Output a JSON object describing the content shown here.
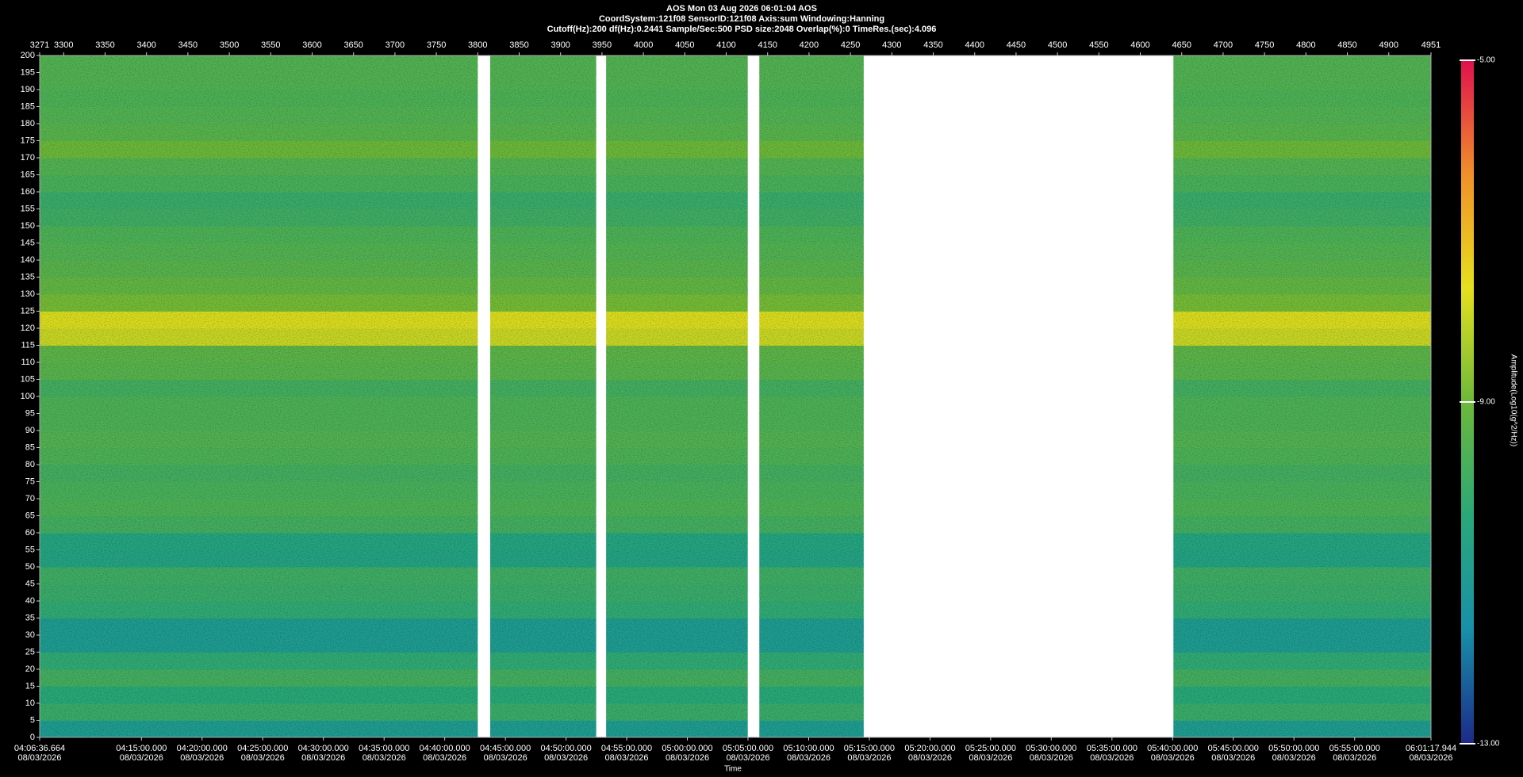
{
  "chart_data": {
    "type": "spectrogram",
    "title_lines": [
      "AOS  Mon 03 Aug 2026 06:01:04  AOS",
      "CoordSystem:121f08   SensorID:121f08   Axis:sum   Windowing:Hanning",
      "Cutoff(Hz):200     df(Hz):0.2441     Sample/Sec:500     PSD size:2048     Overlap(%):0      TimeRes.(sec):4.096"
    ],
    "x_label": "Time",
    "colorbar_label": "Amplitude(Log10(g^2/Hz))",
    "xlim": [
      3271,
      4951
    ],
    "xticks": [
      3271,
      3300,
      3350,
      3400,
      3450,
      3500,
      3550,
      3600,
      3650,
      3700,
      3750,
      3800,
      3850,
      3900,
      3950,
      4000,
      4050,
      4100,
      4150,
      4200,
      4250,
      4300,
      4350,
      4400,
      4450,
      4500,
      4550,
      4600,
      4650,
      4700,
      4750,
      4800,
      4850,
      4900,
      4951
    ],
    "x2ticks": [
      {
        "value": 3271,
        "label": "04:06:36.664"
      },
      {
        "value": 3393.9,
        "label": "04:15:00.000"
      },
      {
        "value": 3467.1,
        "label": "04:20:00.000"
      },
      {
        "value": 3540.4,
        "label": "04:25:00.000"
      },
      {
        "value": 3613.6,
        "label": "04:30:00.000"
      },
      {
        "value": 3686.9,
        "label": "04:35:00.000"
      },
      {
        "value": 3760.1,
        "label": "04:40:00.000"
      },
      {
        "value": 3833.4,
        "label": "04:45:00.000"
      },
      {
        "value": 3906.6,
        "label": "04:50:00.000"
      },
      {
        "value": 3979.8,
        "label": "04:55:00.000"
      },
      {
        "value": 4053.1,
        "label": "05:00:00.000"
      },
      {
        "value": 4126.3,
        "label": "05:05:00.000"
      },
      {
        "value": 4199.6,
        "label": "05:10:00.000"
      },
      {
        "value": 4272.8,
        "label": "05:15:00.000"
      },
      {
        "value": 4346.1,
        "label": "05:20:00.000"
      },
      {
        "value": 4419.3,
        "label": "05:25:00.000"
      },
      {
        "value": 4492.5,
        "label": "05:30:00.000"
      },
      {
        "value": 4565.8,
        "label": "05:35:00.000"
      },
      {
        "value": 4639.0,
        "label": "05:40:00.000"
      },
      {
        "value": 4712.3,
        "label": "05:45:00.000"
      },
      {
        "value": 4785.5,
        "label": "05:50:00.000"
      },
      {
        "value": 4858.8,
        "label": "05:55:00.000"
      },
      {
        "value": 4951,
        "label": "06:01:17.944"
      }
    ],
    "x2tick_dates": [
      "08/03/2026",
      "08/03/2026",
      "08/03/2026",
      "08/03/2026",
      "08/03/2026",
      "08/03/2026",
      "08/03/2026",
      "08/03/2026",
      "08/03/2026",
      "08/03/2026",
      "08/03/2026",
      "08/03/2026",
      "08/03/2026",
      "08/03/2026",
      "08/03/2026",
      "08/03/2026",
      "08/03/2026",
      "08/03/2026",
      "08/03/2026",
      "08/03/2026",
      "08/03/2026",
      "08/03/2026",
      "08/03/2026"
    ],
    "ylim": [
      0,
      200
    ],
    "yticks": [
      0,
      5,
      10,
      15,
      20,
      25,
      30,
      35,
      40,
      45,
      50,
      55,
      60,
      65,
      70,
      75,
      80,
      85,
      90,
      95,
      100,
      105,
      110,
      115,
      120,
      125,
      130,
      135,
      140,
      145,
      150,
      155,
      160,
      165,
      170,
      175,
      180,
      185,
      190,
      195,
      200
    ],
    "segments": [
      [
        3271,
        3800
      ],
      [
        3815,
        3943
      ],
      [
        3955,
        4126
      ],
      [
        4140,
        4266
      ],
      [
        4640,
        4951
      ]
    ],
    "bands": [
      0,
      5,
      10,
      15,
      20,
      25,
      30,
      35,
      40,
      45,
      50,
      55,
      60,
      65,
      70,
      75,
      80,
      85,
      90,
      95,
      100,
      105,
      110,
      115,
      120,
      125,
      130,
      135,
      140,
      145,
      150,
      155,
      160,
      165,
      170,
      175,
      180,
      185,
      190,
      195,
      200
    ],
    "values": [
      -11.0,
      -10.0,
      -10.3,
      -9.8,
      -10.2,
      -11.0,
      -11.0,
      -10.2,
      -10.0,
      -9.9,
      -10.6,
      -10.5,
      -9.8,
      -9.6,
      -9.7,
      -9.8,
      -9.6,
      -9.5,
      -9.6,
      -9.6,
      -9.8,
      -9.4,
      -9.3,
      -8.0,
      -7.8,
      -8.9,
      -9.2,
      -9.4,
      -9.5,
      -9.6,
      -9.9,
      -10.0,
      -9.7,
      -9.5,
      -9.0,
      -9.4,
      -9.5,
      -9.6,
      -9.5,
      -9.5
    ],
    "clim": [
      -13,
      -5
    ],
    "cticks": [
      {
        "value": -13,
        "label": "-13.00"
      },
      {
        "value": -9,
        "label": "-9.00"
      },
      {
        "value": -5,
        "label": "-5.00"
      }
    ],
    "colormap": [
      "#1c2a88",
      "#1890a8",
      "#2aa87a",
      "#6cb83a",
      "#e6e01e",
      "#f0902a",
      "#e0104e"
    ]
  }
}
